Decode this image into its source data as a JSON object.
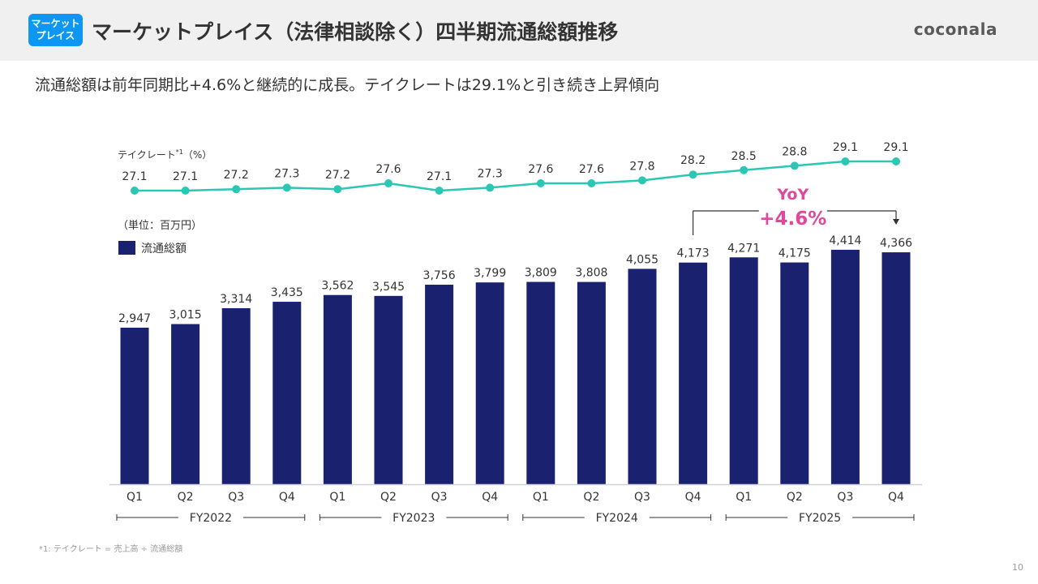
{
  "header": {
    "badge_line1": "マーケット",
    "badge_line2": "プレイス",
    "title": "マーケットプレイス（法律相談除く）四半期流通総額推移",
    "logo": "coconala"
  },
  "subtitle": "流通総額は前年同期比+4.6%と継続的に成長。テイクレートは29.1%と引き続き上昇傾向",
  "footnote": "*1: テイクレート = 売上高 ÷ 流通総額",
  "page_number": "10",
  "colors": {
    "bar": "#1a2270",
    "line": "#2bc7b4",
    "accent": "#e0489c",
    "badge": "#0d97f2"
  },
  "annotation": {
    "line1": "YoY",
    "line2": "+4.6%",
    "from_index": 11,
    "to_index": 15
  },
  "chart_data": {
    "type": "bar",
    "title": "マーケットプレイス（法律相談除く）四半期流通総額推移",
    "unit_label": "（単位：百万円）",
    "categories": [
      "Q1",
      "Q2",
      "Q3",
      "Q4",
      "Q1",
      "Q2",
      "Q3",
      "Q4",
      "Q1",
      "Q2",
      "Q3",
      "Q4",
      "Q1",
      "Q2",
      "Q3",
      "Q4"
    ],
    "groups": [
      {
        "label": "FY2022",
        "start": 0,
        "end": 3
      },
      {
        "label": "FY2023",
        "start": 4,
        "end": 7
      },
      {
        "label": "FY2024",
        "start": 8,
        "end": 11
      },
      {
        "label": "FY2025",
        "start": 12,
        "end": 15
      }
    ],
    "series": [
      {
        "name": "流通総額",
        "type": "bar",
        "values": [
          2947,
          3015,
          3314,
          3435,
          3562,
          3545,
          3756,
          3799,
          3809,
          3808,
          4055,
          4173,
          4271,
          4175,
          4414,
          4366
        ],
        "labels": [
          "2,947",
          "3,015",
          "3,314",
          "3,435",
          "3,562",
          "3,545",
          "3,756",
          "3,799",
          "3,809",
          "3,808",
          "4,055",
          "4,173",
          "4,271",
          "4,175",
          "4,414",
          "4,366"
        ]
      },
      {
        "name": "テイクレート",
        "label_suffix": "*1",
        "unit": "（%）",
        "type": "line",
        "values": [
          27.1,
          27.1,
          27.2,
          27.3,
          27.2,
          27.6,
          27.1,
          27.3,
          27.6,
          27.6,
          27.8,
          28.2,
          28.5,
          28.8,
          29.1,
          29.1
        ]
      }
    ],
    "legend": [
      {
        "name": "流通総額",
        "position": "top-left"
      }
    ],
    "ylim": [
      0,
      4500
    ],
    "grid": false
  }
}
